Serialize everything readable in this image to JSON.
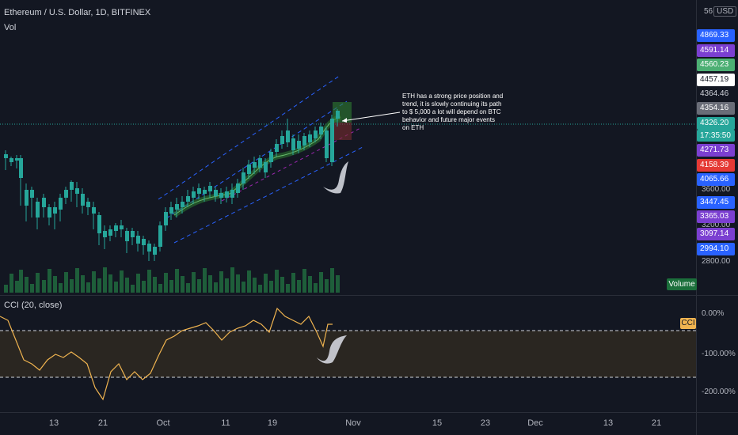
{
  "header": {
    "symbol_line": "Ethereum / U.S. Dollar, 1D, BITFINEX",
    "volume_indicator": "Vol",
    "cci_indicator": "CCI (20, close)"
  },
  "currency": {
    "top_label": "56",
    "button": "USD"
  },
  "price_axis": {
    "labels": [
      {
        "text": "3600.00"
      },
      {
        "text": "3200.00"
      },
      {
        "text": "2800.00"
      }
    ]
  },
  "price_tags": [
    {
      "text": "4869.33",
      "bg": "#2962ff",
      "fg": "#ffffff"
    },
    {
      "text": "4591.14",
      "bg": "#7b3fd1",
      "fg": "#ffffff"
    },
    {
      "text": "4560.23",
      "bg": "#4caf73",
      "fg": "#ffffff"
    },
    {
      "text": "4457.19",
      "bg": "#ffffff",
      "fg": "#131722"
    },
    {
      "text": "4364.46",
      "bg": "#131722",
      "fg": "#d1d4dc"
    },
    {
      "text": "4354.16",
      "bg": "#6a6d78",
      "fg": "#ffffff"
    },
    {
      "text": "4326.20",
      "bg": "#26a69a",
      "fg": "#ffffff"
    },
    {
      "text": "4271.73",
      "bg": "#7b3fd1",
      "fg": "#ffffff"
    },
    {
      "text": "4158.39",
      "bg": "#e53935",
      "fg": "#ffffff"
    },
    {
      "text": "4065.66",
      "bg": "#2962ff",
      "fg": "#ffffff"
    },
    {
      "text": "3447.45",
      "bg": "#2962ff",
      "fg": "#ffffff"
    },
    {
      "text": "3365.03",
      "bg": "#7b3fd1",
      "fg": "#ffffff"
    },
    {
      "text": "3097.14",
      "bg": "#7b3fd1",
      "fg": "#ffffff"
    },
    {
      "text": "2994.10",
      "bg": "#2962ff",
      "fg": "#ffffff"
    }
  ],
  "countdown": "17:35:50",
  "volume_badge": "Volume",
  "cci_badge": "CCI",
  "cci_axis": [
    {
      "text": "0.00%"
    },
    {
      "text": "-100.00%"
    },
    {
      "text": "-200.00%"
    }
  ],
  "time_axis": [
    {
      "text": "13"
    },
    {
      "text": "21"
    },
    {
      "text": "Oct"
    },
    {
      "text": "11"
    },
    {
      "text": "19"
    },
    {
      "text": "Nov"
    },
    {
      "text": "15"
    },
    {
      "text": "23"
    },
    {
      "text": "Dec"
    },
    {
      "text": "13"
    },
    {
      "text": "21"
    }
  ],
  "annotation": "ETH has a strong price position and trend, it is slowly continuing its path to $ 5,000 a lot will depend on BTC behavior and future major events on ETH",
  "colors": {
    "background": "#131722",
    "up": "#26a69a",
    "down": "#ef5350",
    "channel": "#2962ff",
    "cci_line": "#f0b450",
    "cci_band": "#2a2621",
    "vol_up": "#1e5e3a",
    "vol_down": "#7a2b2f"
  }
}
